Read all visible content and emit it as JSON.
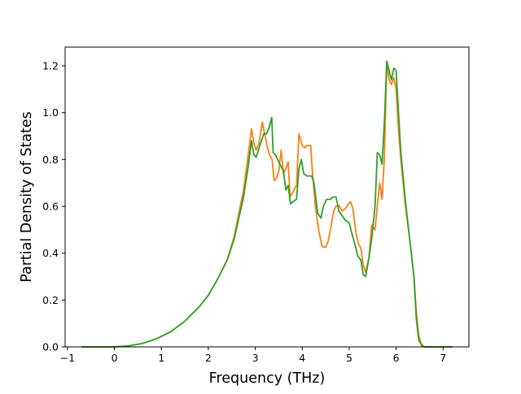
{
  "chart_data": {
    "type": "line",
    "title": "",
    "xlabel": "Frequency (THz)",
    "ylabel": "Partial Density of States",
    "xlim": [
      -1.05,
      7.55
    ],
    "ylim": [
      0.0,
      1.28
    ],
    "xticks": [
      -1,
      0,
      1,
      2,
      3,
      4,
      5,
      6,
      7
    ],
    "yticks": [
      0.0,
      0.2,
      0.4,
      0.6,
      0.8,
      1.0,
      1.2
    ],
    "xtick_labels": [
      "−1",
      "0",
      "1",
      "2",
      "3",
      "4",
      "5",
      "6",
      "7"
    ],
    "ytick_labels": [
      "0.0",
      "0.2",
      "0.4",
      "0.6",
      "0.8",
      "1.0",
      "1.2"
    ],
    "grid": false,
    "legend": "none",
    "series": [
      {
        "color": "#ff7f0e",
        "points": [
          [
            -0.7,
            0.0
          ],
          [
            0.0,
            0.0
          ],
          [
            0.3,
            0.004
          ],
          [
            0.6,
            0.015
          ],
          [
            0.9,
            0.035
          ],
          [
            1.2,
            0.065
          ],
          [
            1.5,
            0.11
          ],
          [
            1.8,
            0.17
          ],
          [
            2.0,
            0.22
          ],
          [
            2.2,
            0.29
          ],
          [
            2.4,
            0.37
          ],
          [
            2.55,
            0.47
          ],
          [
            2.65,
            0.57
          ],
          [
            2.75,
            0.67
          ],
          [
            2.85,
            0.82
          ],
          [
            2.92,
            0.93
          ],
          [
            2.97,
            0.87
          ],
          [
            3.02,
            0.84
          ],
          [
            3.08,
            0.87
          ],
          [
            3.15,
            0.96
          ],
          [
            3.2,
            0.91
          ],
          [
            3.25,
            0.86
          ],
          [
            3.3,
            0.82
          ],
          [
            3.36,
            0.8
          ],
          [
            3.4,
            0.71
          ],
          [
            3.45,
            0.72
          ],
          [
            3.5,
            0.75
          ],
          [
            3.55,
            0.84
          ],
          [
            3.6,
            0.74
          ],
          [
            3.65,
            0.76
          ],
          [
            3.7,
            0.79
          ],
          [
            3.74,
            0.64
          ],
          [
            3.8,
            0.66
          ],
          [
            3.88,
            0.69
          ],
          [
            3.93,
            0.91
          ],
          [
            4.0,
            0.86
          ],
          [
            4.05,
            0.85
          ],
          [
            4.1,
            0.86
          ],
          [
            4.18,
            0.86
          ],
          [
            4.22,
            0.74
          ],
          [
            4.28,
            0.6
          ],
          [
            4.35,
            0.5
          ],
          [
            4.42,
            0.43
          ],
          [
            4.5,
            0.425
          ],
          [
            4.55,
            0.45
          ],
          [
            4.6,
            0.5
          ],
          [
            4.67,
            0.58
          ],
          [
            4.72,
            0.6
          ],
          [
            4.78,
            0.605
          ],
          [
            4.85,
            0.58
          ],
          [
            4.92,
            0.59
          ],
          [
            4.98,
            0.61
          ],
          [
            5.03,
            0.62
          ],
          [
            5.08,
            0.59
          ],
          [
            5.15,
            0.48
          ],
          [
            5.2,
            0.44
          ],
          [
            5.25,
            0.42
          ],
          [
            5.3,
            0.35
          ],
          [
            5.35,
            0.32
          ],
          [
            5.42,
            0.38
          ],
          [
            5.48,
            0.52
          ],
          [
            5.55,
            0.5
          ],
          [
            5.6,
            0.6
          ],
          [
            5.65,
            0.7
          ],
          [
            5.7,
            0.63
          ],
          [
            5.75,
            0.81
          ],
          [
            5.8,
            1.21
          ],
          [
            5.85,
            1.14
          ],
          [
            5.9,
            1.12
          ],
          [
            5.95,
            1.15
          ],
          [
            6.0,
            1.1
          ],
          [
            6.05,
            0.93
          ],
          [
            6.1,
            0.8
          ],
          [
            6.2,
            0.6
          ],
          [
            6.3,
            0.44
          ],
          [
            6.38,
            0.3
          ],
          [
            6.43,
            0.15
          ],
          [
            6.48,
            0.05
          ],
          [
            6.53,
            0.015
          ],
          [
            6.6,
            0.0
          ],
          [
            7.2,
            0.0
          ]
        ]
      },
      {
        "color": "#2ca02c",
        "points": [
          [
            -0.7,
            0.0
          ],
          [
            0.0,
            0.0
          ],
          [
            0.3,
            0.004
          ],
          [
            0.6,
            0.015
          ],
          [
            0.9,
            0.035
          ],
          [
            1.2,
            0.065
          ],
          [
            1.5,
            0.11
          ],
          [
            1.8,
            0.17
          ],
          [
            2.0,
            0.22
          ],
          [
            2.2,
            0.29
          ],
          [
            2.4,
            0.37
          ],
          [
            2.55,
            0.46
          ],
          [
            2.65,
            0.55
          ],
          [
            2.75,
            0.64
          ],
          [
            2.85,
            0.77
          ],
          [
            2.92,
            0.88
          ],
          [
            2.97,
            0.82
          ],
          [
            3.02,
            0.81
          ],
          [
            3.1,
            0.86
          ],
          [
            3.18,
            0.91
          ],
          [
            3.24,
            0.91
          ],
          [
            3.3,
            0.94
          ],
          [
            3.35,
            0.98
          ],
          [
            3.38,
            0.83
          ],
          [
            3.43,
            0.82
          ],
          [
            3.5,
            0.79
          ],
          [
            3.55,
            0.77
          ],
          [
            3.6,
            0.75
          ],
          [
            3.65,
            0.67
          ],
          [
            3.7,
            0.69
          ],
          [
            3.75,
            0.61
          ],
          [
            3.8,
            0.62
          ],
          [
            3.88,
            0.63
          ],
          [
            3.93,
            0.76
          ],
          [
            3.98,
            0.8
          ],
          [
            4.03,
            0.74
          ],
          [
            4.1,
            0.73
          ],
          [
            4.2,
            0.73
          ],
          [
            4.25,
            0.7
          ],
          [
            4.33,
            0.57
          ],
          [
            4.4,
            0.55
          ],
          [
            4.45,
            0.6
          ],
          [
            4.52,
            0.63
          ],
          [
            4.6,
            0.63
          ],
          [
            4.65,
            0.64
          ],
          [
            4.72,
            0.64
          ],
          [
            4.78,
            0.58
          ],
          [
            4.85,
            0.56
          ],
          [
            4.92,
            0.54
          ],
          [
            5.0,
            0.53
          ],
          [
            5.05,
            0.49
          ],
          [
            5.12,
            0.44
          ],
          [
            5.18,
            0.39
          ],
          [
            5.25,
            0.37
          ],
          [
            5.3,
            0.31
          ],
          [
            5.35,
            0.3
          ],
          [
            5.42,
            0.38
          ],
          [
            5.48,
            0.46
          ],
          [
            5.55,
            0.6
          ],
          [
            5.6,
            0.83
          ],
          [
            5.65,
            0.82
          ],
          [
            5.7,
            0.78
          ],
          [
            5.75,
            0.96
          ],
          [
            5.8,
            1.22
          ],
          [
            5.85,
            1.18
          ],
          [
            5.9,
            1.14
          ],
          [
            5.95,
            1.19
          ],
          [
            6.0,
            1.18
          ],
          [
            6.05,
            1.0
          ],
          [
            6.1,
            0.83
          ],
          [
            6.2,
            0.62
          ],
          [
            6.3,
            0.44
          ],
          [
            6.38,
            0.3
          ],
          [
            6.43,
            0.12
          ],
          [
            6.48,
            0.03
          ],
          [
            6.55,
            0.005
          ],
          [
            6.6,
            0.0
          ],
          [
            7.2,
            0.0
          ]
        ]
      }
    ]
  }
}
